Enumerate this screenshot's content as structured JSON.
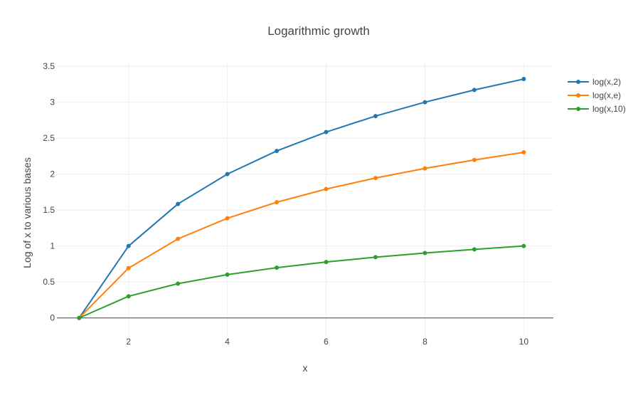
{
  "chart_data": {
    "type": "line",
    "title": "Logarithmic growth",
    "xlabel": "x",
    "ylabel": "Log of x to various bases",
    "xlim": [
      0.55,
      10.6
    ],
    "ylim": [
      -0.25,
      3.55
    ],
    "x_ticks": [
      2,
      4,
      6,
      8,
      10
    ],
    "y_ticks": [
      0,
      0.5,
      1,
      1.5,
      2,
      2.5,
      3,
      3.5
    ],
    "x_tick_labels": [
      "2",
      "4",
      "6",
      "8",
      "10"
    ],
    "y_tick_labels": [
      "0",
      "0.5",
      "1",
      "1.5",
      "2",
      "2.5",
      "3",
      "3.5"
    ],
    "grid": true,
    "legend_position": "top-right",
    "x": [
      1,
      2,
      3,
      4,
      5,
      6,
      7,
      8,
      9,
      10
    ],
    "series": [
      {
        "name": "log(x,2)",
        "color": "#1f77b4",
        "values": [
          0,
          1,
          1.585,
          2,
          2.322,
          2.585,
          2.807,
          3,
          3.17,
          3.322
        ]
      },
      {
        "name": "log(x,e)",
        "color": "#ff7f0e",
        "values": [
          0,
          0.693,
          1.099,
          1.386,
          1.609,
          1.792,
          1.946,
          2.079,
          2.197,
          2.303
        ]
      },
      {
        "name": "log(x,10)",
        "color": "#2ca02c",
        "values": [
          0,
          0.301,
          0.477,
          0.602,
          0.699,
          0.778,
          0.845,
          0.903,
          0.954,
          1
        ]
      }
    ]
  }
}
